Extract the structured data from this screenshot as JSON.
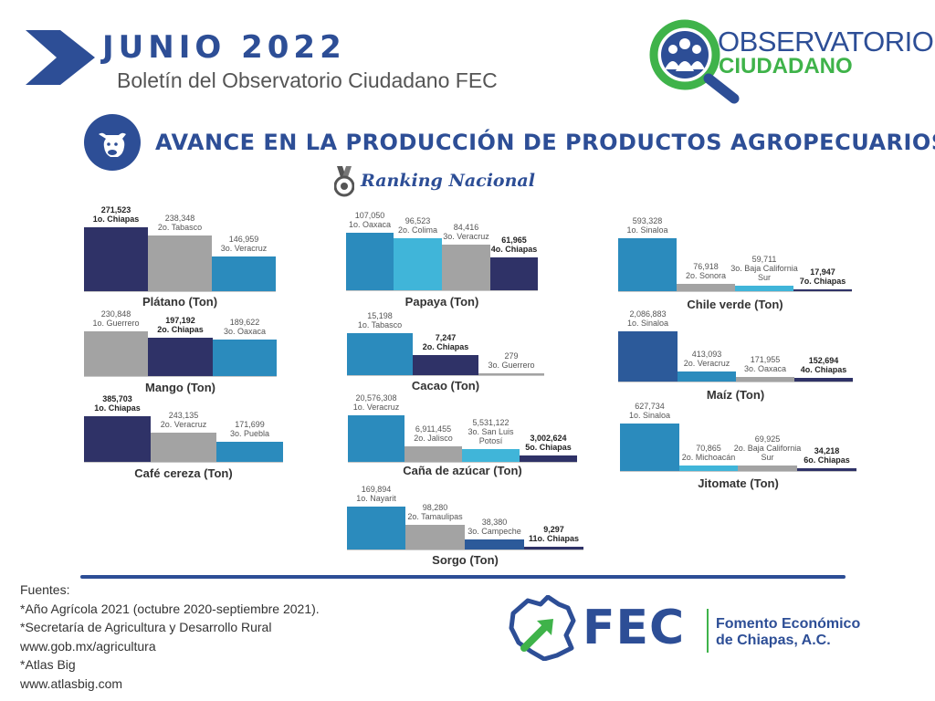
{
  "header": {
    "month": "JUNIO  2022",
    "bulletin": "Boletín del Observatorio Ciudadano FEC"
  },
  "logo": {
    "line1": "OBSERVATORIO",
    "line2": "CIUDADANO"
  },
  "title": "AVANCE EN LA PRODUCCIÓN DE PRODUCTOS AGROPECUARIOS",
  "subtitle": "Ranking Nacional",
  "colors": {
    "navy": "#2f3267",
    "gray": "#a3a3a3",
    "blue": "#2b8bbd",
    "lightblue": "#40b5d9",
    "darkblue": "#2c5a9a",
    "accent": "#2d4e96",
    "green": "#3fb34a"
  },
  "icons": [
    "arrow-icon",
    "cow-icon",
    "medal-icon",
    "observatory-logo-icon",
    "chiapas-map-icon"
  ],
  "chart_data": [
    {
      "type": "bar",
      "title": "Plátano (Ton)",
      "categories": [
        "1o.  Chiapas",
        "2o. Tabasco",
        "3o. Veracruz"
      ],
      "values": [
        271523,
        238348,
        146959
      ],
      "value_labels": [
        "271,523",
        "238,348",
        "146,959"
      ],
      "colors": [
        "navy",
        "gray",
        "blue"
      ],
      "highlight": 0
    },
    {
      "type": "bar",
      "title": "Papaya (Ton)",
      "categories": [
        "1o. Oaxaca",
        "2o. Colima",
        "3o. Veracruz",
        "4o. Chiapas"
      ],
      "values": [
        107050,
        96523,
        84416,
        61965
      ],
      "value_labels": [
        "107,050",
        "96,523",
        "84,416",
        "61,965"
      ],
      "colors": [
        "blue",
        "lightblue",
        "gray",
        "navy"
      ],
      "highlight": 3
    },
    {
      "type": "bar",
      "title": "Chile verde (Ton)",
      "categories": [
        "1o. Sinaloa",
        "2o. Sonora",
        "3o. Baja California Sur",
        "7o. Chiapas"
      ],
      "values": [
        593328,
        76918,
        59711,
        17947
      ],
      "value_labels": [
        "593,328",
        "76,918",
        "59,711",
        "17,947"
      ],
      "colors": [
        "blue",
        "gray",
        "lightblue",
        "navy"
      ],
      "highlight": 3
    },
    {
      "type": "bar",
      "title": "Mango (Ton)",
      "categories": [
        "1o. Guerrero",
        "2o. Chiapas",
        "3o. Oaxaca"
      ],
      "values": [
        230848,
        197192,
        189622
      ],
      "value_labels": [
        "230,848",
        "197,192",
        "189,622"
      ],
      "colors": [
        "gray",
        "navy",
        "blue"
      ],
      "highlight": 1
    },
    {
      "type": "bar",
      "title": "Cacao (Ton)",
      "categories": [
        "1o. Tabasco",
        "2o. Chiapas",
        "3o. Guerrero"
      ],
      "values": [
        15198,
        7247,
        279
      ],
      "value_labels": [
        "15,198",
        "7,247",
        "279"
      ],
      "colors": [
        "blue",
        "navy",
        "gray"
      ],
      "highlight": 1
    },
    {
      "type": "bar",
      "title": "Maíz (Ton)",
      "categories": [
        "1o. Sinaloa",
        "2o. Veracruz",
        "3o. Oaxaca",
        "4o. Chiapas"
      ],
      "values": [
        2086883,
        413093,
        171955,
        152694
      ],
      "value_labels": [
        "2,086,883",
        "413,093",
        "171,955",
        "152,694"
      ],
      "colors": [
        "darkblue",
        "blue",
        "gray",
        "navy"
      ],
      "highlight": 3
    },
    {
      "type": "bar",
      "title": "Café cereza (Ton)",
      "categories": [
        "1o. Chiapas",
        "2o. Veracruz",
        "3o. Puebla"
      ],
      "values": [
        385703,
        243135,
        171699
      ],
      "value_labels": [
        "385,703",
        "243,135",
        "171,699"
      ],
      "colors": [
        "navy",
        "gray",
        "blue"
      ],
      "highlight": 0
    },
    {
      "type": "bar",
      "title": "Caña de azúcar  (Ton)",
      "categories": [
        "1o. Veracruz",
        "2o. Jalisco",
        "3o. San Luis Potosí",
        "5o. Chiapas"
      ],
      "values": [
        20576308,
        6911455,
        5531122,
        3002624
      ],
      "value_labels": [
        "20,576,308",
        "6,911,455",
        "5,531,122",
        "3,002,624"
      ],
      "colors": [
        "blue",
        "gray",
        "lightblue",
        "navy"
      ],
      "highlight": 3
    },
    {
      "type": "bar",
      "title": "Jitomate  (Ton)",
      "categories": [
        "1o. Sinaloa",
        "2o. Michoacán",
        "2o. Baja California Sur",
        "6o. Chiapas"
      ],
      "values": [
        627734,
        70865,
        69925,
        34218
      ],
      "value_labels": [
        "627,734",
        "70,865",
        "69,925",
        "34,218"
      ],
      "colors": [
        "blue",
        "lightblue",
        "gray",
        "navy"
      ],
      "highlight": 3
    },
    {
      "type": "bar",
      "title": "Sorgo  (Ton)",
      "categories": [
        "1o. Nayarit",
        "2o. Tamaulipas",
        "3o. Campeche",
        "11o. Chiapas"
      ],
      "values": [
        169894,
        98280,
        38380,
        9297
      ],
      "value_labels": [
        "169,894",
        "98,280",
        "38,380",
        "9,297"
      ],
      "colors": [
        "blue",
        "gray",
        "darkblue",
        "navy"
      ],
      "highlight": 3
    }
  ],
  "sources": [
    "Fuentes:",
    "*Año Agrícola 2021 (octubre 2020-septiembre 2021).",
    "*Secretaría de Agricultura y Desarrollo Rural",
    "www.gob.mx/agricultura",
    "*Atlas Big",
    "www.atlasbig.com"
  ],
  "fec": {
    "acronym": "FEC",
    "name_line1": "Fomento Económico",
    "name_line2": "de Chiapas, A.C."
  }
}
